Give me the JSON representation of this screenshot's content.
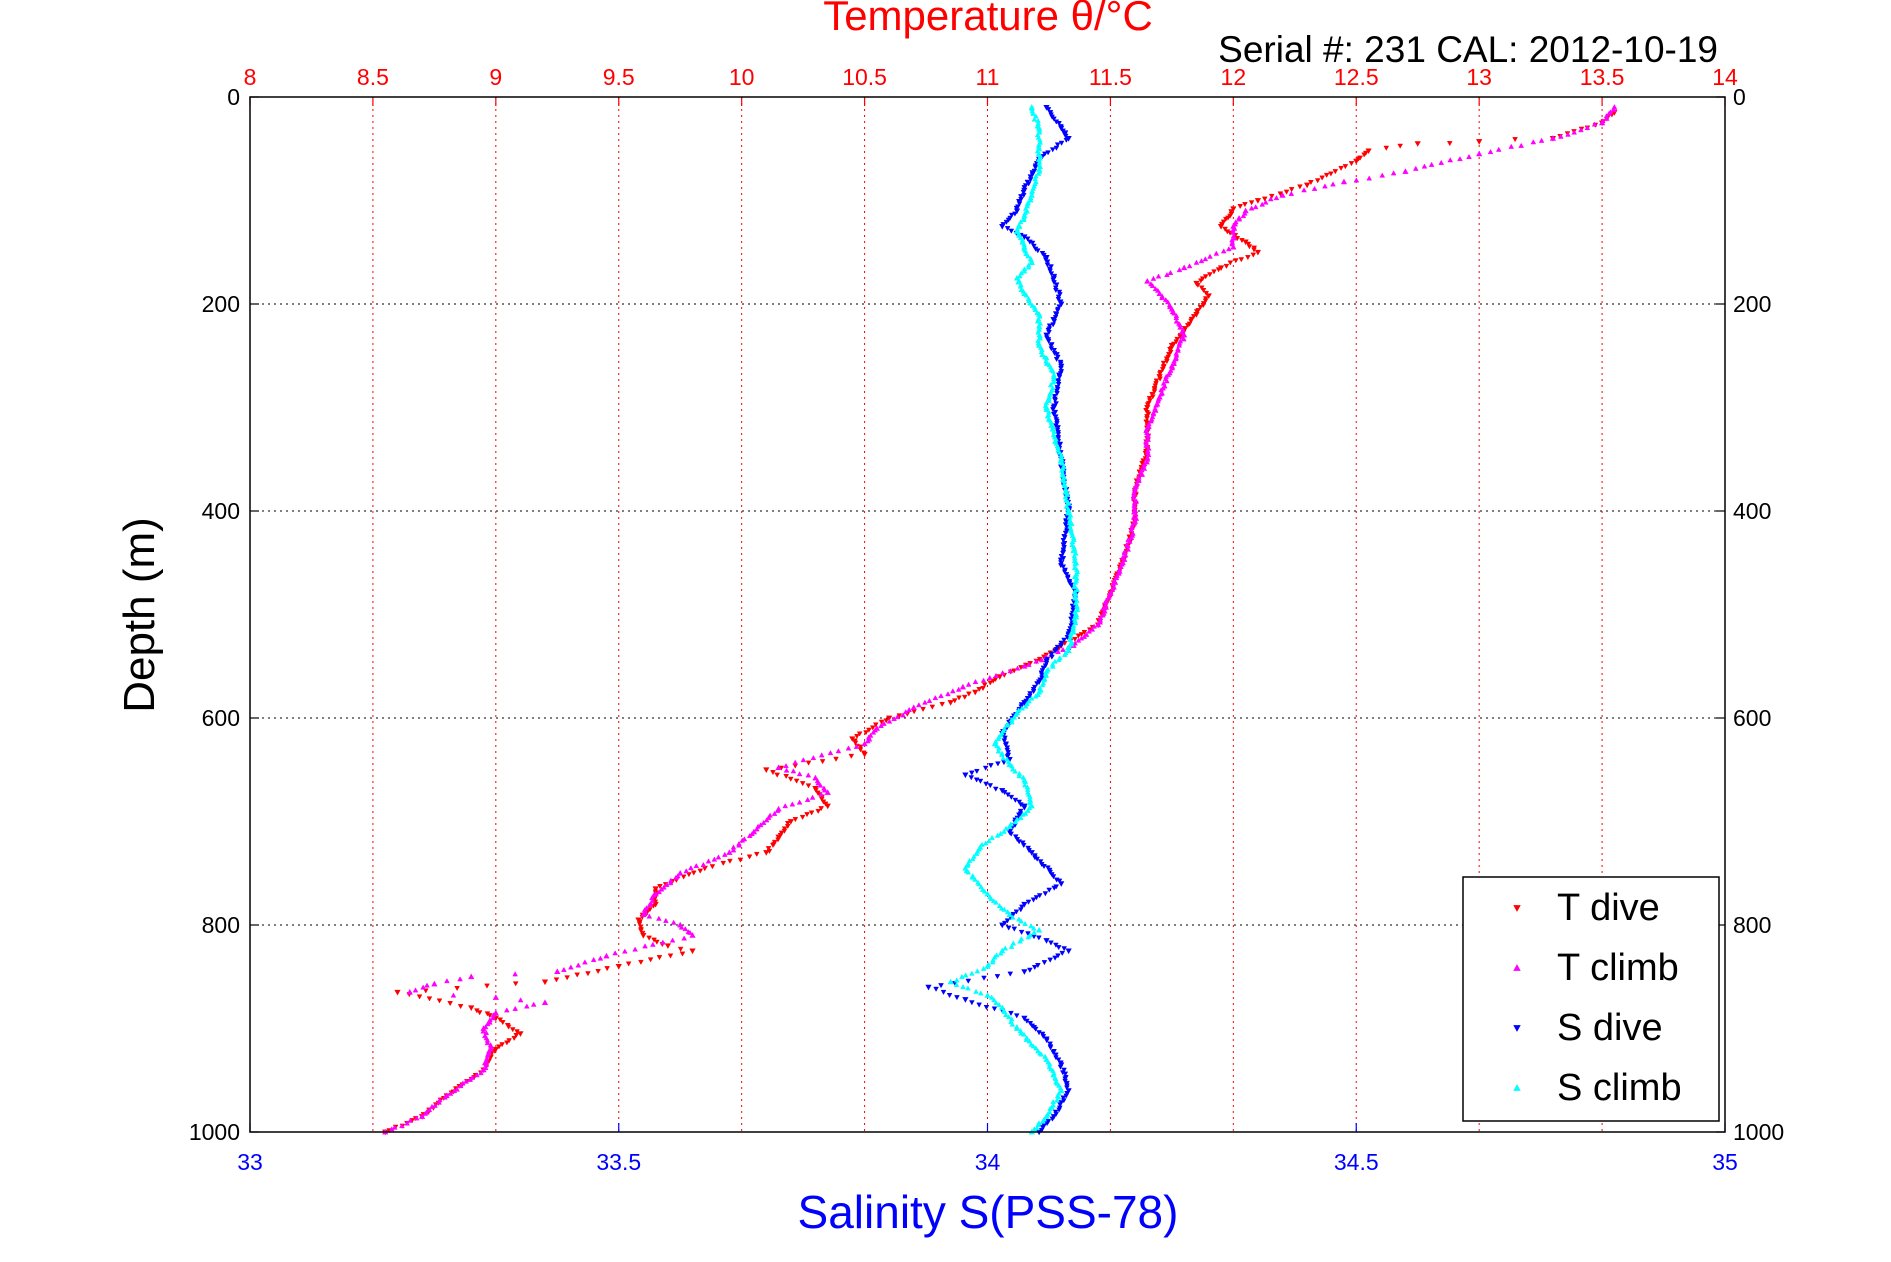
{
  "chart_data": {
    "type": "scatter",
    "title": "Temperature θ/°C",
    "subtitle": "Serial #: 231  CAL: 2012-10-19",
    "xlabel": "Salinity S(PSS-78)",
    "ylabel": "Depth (m)",
    "top_axis": {
      "label": "Temperature θ/°C",
      "lim": [
        8,
        14
      ],
      "ticks": [
        "8",
        "8.5",
        "9",
        "9.5",
        "10",
        "10.5",
        "11",
        "11.5",
        "12",
        "12.5",
        "13",
        "13.5",
        "14"
      ],
      "color": "#ff0000"
    },
    "bottom_axis": {
      "label": "Salinity S(PSS-78)",
      "lim": [
        33,
        35
      ],
      "ticks": [
        "33",
        "33.5",
        "34",
        "34.5",
        "35"
      ],
      "color": "#0000ff"
    },
    "y_axis": {
      "lim": [
        0,
        1000
      ],
      "reversed": true,
      "ticks": [
        "0",
        "200",
        "400",
        "600",
        "800",
        "1000"
      ]
    },
    "grid": true,
    "legend_position": "bottom-right",
    "series": [
      {
        "name": "T dive",
        "axis": "temperature",
        "color": "#ff0000",
        "marker": "triangle-down",
        "points": [
          [
            13.55,
            15
          ],
          [
            13.5,
            25
          ],
          [
            13.3,
            40
          ],
          [
            13.0,
            43
          ],
          [
            12.75,
            45
          ],
          [
            12.55,
            52
          ],
          [
            12.5,
            62
          ],
          [
            12.3,
            85
          ],
          [
            12.1,
            100
          ],
          [
            12.0,
            108
          ],
          [
            11.95,
            125
          ],
          [
            12.05,
            140
          ],
          [
            12.1,
            150
          ],
          [
            11.95,
            165
          ],
          [
            11.85,
            180
          ],
          [
            11.9,
            192
          ],
          [
            11.85,
            210
          ],
          [
            11.75,
            240
          ],
          [
            11.7,
            270
          ],
          [
            11.65,
            300
          ],
          [
            11.65,
            340
          ],
          [
            11.6,
            380
          ],
          [
            11.6,
            410
          ],
          [
            11.55,
            450
          ],
          [
            11.5,
            480
          ],
          [
            11.45,
            510
          ],
          [
            11.3,
            530
          ],
          [
            11.2,
            545
          ],
          [
            11.05,
            560
          ],
          [
            10.95,
            575
          ],
          [
            10.85,
            585
          ],
          [
            10.6,
            600
          ],
          [
            10.45,
            620
          ],
          [
            10.5,
            635
          ],
          [
            10.1,
            650
          ],
          [
            10.3,
            668
          ],
          [
            10.35,
            685
          ],
          [
            10.2,
            700
          ],
          [
            10.15,
            715
          ],
          [
            10.1,
            730
          ],
          [
            9.85,
            745
          ],
          [
            9.65,
            765
          ],
          [
            9.65,
            780
          ],
          [
            9.58,
            795
          ],
          [
            9.6,
            810
          ],
          [
            9.7,
            820
          ],
          [
            9.8,
            825
          ],
          [
            9.5,
            840
          ],
          [
            9.2,
            855
          ],
          [
            8.6,
            865
          ],
          [
            8.9,
            880
          ],
          [
            9.0,
            890
          ],
          [
            9.1,
            905
          ],
          [
            9.0,
            920
          ],
          [
            8.95,
            940
          ],
          [
            8.8,
            965
          ],
          [
            8.7,
            985
          ],
          [
            8.55,
            1000
          ]
        ]
      },
      {
        "name": "T climb",
        "axis": "temperature",
        "color": "#ff00ff",
        "marker": "triangle-up",
        "points": [
          [
            13.55,
            10
          ],
          [
            13.5,
            25
          ],
          [
            13.3,
            40
          ],
          [
            13.0,
            55
          ],
          [
            12.7,
            72
          ],
          [
            12.45,
            82
          ],
          [
            12.2,
            95
          ],
          [
            12.05,
            110
          ],
          [
            12.0,
            125
          ],
          [
            12.0,
            145
          ],
          [
            11.8,
            165
          ],
          [
            11.65,
            178
          ],
          [
            11.7,
            190
          ],
          [
            11.75,
            205
          ],
          [
            11.8,
            230
          ],
          [
            11.75,
            260
          ],
          [
            11.7,
            290
          ],
          [
            11.65,
            320
          ],
          [
            11.65,
            350
          ],
          [
            11.6,
            380
          ],
          [
            11.6,
            410
          ],
          [
            11.55,
            450
          ],
          [
            11.5,
            480
          ],
          [
            11.45,
            510
          ],
          [
            11.35,
            530
          ],
          [
            11.15,
            550
          ],
          [
            10.9,
            570
          ],
          [
            10.7,
            590
          ],
          [
            10.55,
            610
          ],
          [
            10.5,
            625
          ],
          [
            10.15,
            648
          ],
          [
            10.3,
            658
          ],
          [
            10.35,
            672
          ],
          [
            10.15,
            688
          ],
          [
            10.05,
            710
          ],
          [
            9.95,
            730
          ],
          [
            9.75,
            750
          ],
          [
            9.65,
            770
          ],
          [
            9.6,
            790
          ],
          [
            9.75,
            800
          ],
          [
            9.8,
            810
          ],
          [
            9.45,
            830
          ],
          [
            9.25,
            845
          ],
          [
            8.9,
            850
          ],
          [
            8.75,
            857
          ],
          [
            8.65,
            865
          ],
          [
            9.0,
            870
          ],
          [
            9.2,
            875
          ],
          [
            9.0,
            885
          ],
          [
            8.95,
            900
          ],
          [
            8.98,
            920
          ],
          [
            8.95,
            940
          ],
          [
            8.8,
            965
          ],
          [
            8.7,
            985
          ],
          [
            8.55,
            1000
          ]
        ]
      },
      {
        "name": "S dive",
        "axis": "salinity",
        "color": "#0000ff",
        "marker": "triangle-down",
        "points": [
          [
            34.08,
            10
          ],
          [
            34.1,
            30
          ],
          [
            34.11,
            40
          ],
          [
            34.07,
            60
          ],
          [
            34.05,
            90
          ],
          [
            34.04,
            110
          ],
          [
            34.02,
            125
          ],
          [
            34.05,
            135
          ],
          [
            34.08,
            155
          ],
          [
            34.09,
            175
          ],
          [
            34.1,
            200
          ],
          [
            34.08,
            230
          ],
          [
            34.1,
            260
          ],
          [
            34.09,
            300
          ],
          [
            34.1,
            350
          ],
          [
            34.11,
            400
          ],
          [
            34.1,
            450
          ],
          [
            34.12,
            480
          ],
          [
            34.11,
            520
          ],
          [
            34.08,
            545
          ],
          [
            34.07,
            565
          ],
          [
            34.05,
            585
          ],
          [
            34.02,
            615
          ],
          [
            34.03,
            640
          ],
          [
            33.97,
            655
          ],
          [
            34.02,
            670
          ],
          [
            34.05,
            685
          ],
          [
            34.03,
            710
          ],
          [
            34.06,
            730
          ],
          [
            34.1,
            760
          ],
          [
            34.05,
            780
          ],
          [
            34.02,
            800
          ],
          [
            34.08,
            815
          ],
          [
            34.11,
            825
          ],
          [
            34.05,
            845
          ],
          [
            33.92,
            860
          ],
          [
            33.97,
            872
          ],
          [
            34.05,
            890
          ],
          [
            34.08,
            910
          ],
          [
            34.1,
            935
          ],
          [
            34.11,
            960
          ],
          [
            34.09,
            985
          ],
          [
            34.07,
            1000
          ]
        ]
      },
      {
        "name": "S climb",
        "axis": "salinity",
        "color": "#00ffff",
        "marker": "triangle-up",
        "points": [
          [
            34.06,
            10
          ],
          [
            34.07,
            30
          ],
          [
            34.07,
            50
          ],
          [
            34.07,
            70
          ],
          [
            34.06,
            95
          ],
          [
            34.05,
            115
          ],
          [
            34.04,
            130
          ],
          [
            34.05,
            145
          ],
          [
            34.06,
            160
          ],
          [
            34.04,
            175
          ],
          [
            34.05,
            190
          ],
          [
            34.07,
            210
          ],
          [
            34.07,
            240
          ],
          [
            34.09,
            270
          ],
          [
            34.08,
            300
          ],
          [
            34.1,
            350
          ],
          [
            34.11,
            400
          ],
          [
            34.12,
            450
          ],
          [
            34.12,
            500
          ],
          [
            34.11,
            535
          ],
          [
            34.08,
            555
          ],
          [
            34.07,
            575
          ],
          [
            34.04,
            595
          ],
          [
            34.01,
            625
          ],
          [
            34.03,
            645
          ],
          [
            34.05,
            660
          ],
          [
            34.06,
            685
          ],
          [
            34.03,
            705
          ],
          [
            33.99,
            725
          ],
          [
            33.97,
            745
          ],
          [
            34.0,
            770
          ],
          [
            34.03,
            790
          ],
          [
            34.07,
            805
          ],
          [
            34.02,
            825
          ],
          [
            34.0,
            840
          ],
          [
            33.95,
            855
          ],
          [
            34.0,
            868
          ],
          [
            34.02,
            880
          ],
          [
            34.04,
            900
          ],
          [
            34.08,
            930
          ],
          [
            34.1,
            960
          ],
          [
            34.08,
            985
          ],
          [
            34.06,
            1000
          ]
        ]
      }
    ]
  }
}
